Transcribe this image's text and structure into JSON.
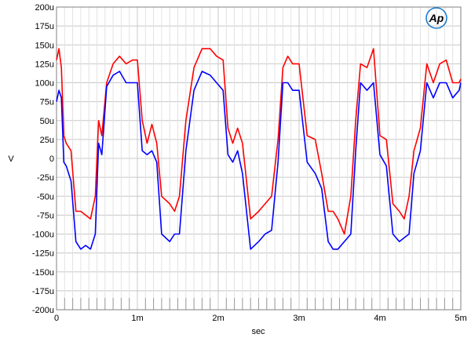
{
  "logo": {
    "text": "Ap",
    "color": "#1e7fd0"
  },
  "chart_data": {
    "type": "line",
    "title": "",
    "xlabel": "sec",
    "ylabel": "V",
    "xlim": [
      0,
      0.005
    ],
    "ylim": [
      -0.0002,
      0.0002
    ],
    "grid": true,
    "x_tick_labels": [
      "0",
      "1m",
      "2m",
      "3m",
      "4m",
      "5m"
    ],
    "x_tick_values": [
      0,
      0.001,
      0.002,
      0.003,
      0.004,
      0.005
    ],
    "y_tick_labels": [
      "200u",
      "175u",
      "150u",
      "125u",
      "100u",
      "75u",
      "50u",
      "25u",
      "0",
      "-25u",
      "-50u",
      "-75u",
      "-100u",
      "-125u",
      "-150u",
      "-175u",
      "-200u"
    ],
    "y_tick_values": [
      0.0002,
      0.000175,
      0.00015,
      0.000125,
      0.0001,
      7.5e-05,
      5e-05,
      2.5e-05,
      0,
      -2.5e-05,
      -5e-05,
      -7.5e-05,
      -0.0001,
      -0.000125,
      -0.00015,
      -0.000175,
      -0.0002
    ],
    "series": [
      {
        "color": "#ff0000",
        "x": [
          0,
          3e-05,
          6e-05,
          9e-05,
          0.00012,
          0.00018,
          0.00024,
          0.0003,
          0.00036,
          0.00042,
          0.00048,
          0.00052,
          0.00056,
          0.00062,
          0.0007,
          0.00078,
          0.00086,
          0.00094,
          0.001,
          0.00106,
          0.00112,
          0.00118,
          0.00124,
          0.0013,
          0.0014,
          0.00146,
          0.00152,
          0.0016,
          0.0017,
          0.0018,
          0.0019,
          0.00198,
          0.00206,
          0.00212,
          0.00218,
          0.00224,
          0.0023,
          0.0024,
          0.0025,
          0.00258,
          0.00266,
          0.00274,
          0.0028,
          0.00286,
          0.00292,
          0.003,
          0.0031,
          0.0032,
          0.00328,
          0.00336,
          0.00342,
          0.00348,
          0.00356,
          0.00364,
          0.0037,
          0.00376,
          0.00384,
          0.00392,
          0.004,
          0.00408,
          0.00416,
          0.00424,
          0.0043,
          0.00436,
          0.00442,
          0.0045,
          0.00458,
          0.00466,
          0.00474,
          0.00482,
          0.0049,
          0.00498,
          0.005
        ],
        "y": [
          0.00013,
          0.000145,
          0.00012,
          3e-05,
          2e-05,
          1e-05,
          -7e-05,
          -7e-05,
          -7.5e-05,
          -8e-05,
          -5e-05,
          5e-05,
          3e-05,
          0.0001,
          0.000125,
          0.000135,
          0.000125,
          0.00013,
          0.00013,
          5e-05,
          2e-05,
          4.5e-05,
          2e-05,
          -5e-05,
          -6e-05,
          -7e-05,
          -5e-05,
          5e-05,
          0.00012,
          0.000145,
          0.000145,
          0.000135,
          0.00013,
          4e-05,
          2e-05,
          4e-05,
          2e-05,
          -8e-05,
          -7e-05,
          -6e-05,
          -5e-05,
          2.5e-05,
          0.00012,
          0.000135,
          0.000125,
          0.000125,
          3e-05,
          2.5e-05,
          -2e-05,
          -7e-05,
          -7e-05,
          -8e-05,
          -0.0001,
          -5e-05,
          5e-05,
          0.000125,
          0.00012,
          0.000145,
          3e-05,
          2.5e-05,
          -6e-05,
          -7e-05,
          -8e-05,
          -5e-05,
          1e-05,
          4e-05,
          0.000125,
          0.0001,
          0.000125,
          0.00013,
          0.0001,
          0.0001,
          0.000105
        ]
      },
      {
        "color": "#0000ff",
        "x": [
          0,
          3e-05,
          6e-05,
          9e-05,
          0.00012,
          0.00018,
          0.00024,
          0.0003,
          0.00036,
          0.00042,
          0.00048,
          0.00052,
          0.00056,
          0.00062,
          0.0007,
          0.00078,
          0.00086,
          0.00094,
          0.001,
          0.00106,
          0.00112,
          0.00118,
          0.00124,
          0.0013,
          0.0014,
          0.00146,
          0.00152,
          0.0016,
          0.0017,
          0.0018,
          0.0019,
          0.00198,
          0.00206,
          0.00212,
          0.00218,
          0.00224,
          0.0023,
          0.0024,
          0.0025,
          0.00258,
          0.00266,
          0.00274,
          0.0028,
          0.00286,
          0.00292,
          0.003,
          0.0031,
          0.0032,
          0.00328,
          0.00336,
          0.00342,
          0.00348,
          0.00356,
          0.00364,
          0.0037,
          0.00376,
          0.00384,
          0.00392,
          0.004,
          0.00408,
          0.00416,
          0.00424,
          0.0043,
          0.00436,
          0.00442,
          0.0045,
          0.00458,
          0.00466,
          0.00474,
          0.00482,
          0.0049,
          0.00498,
          0.005
        ],
        "y": [
          7.5e-05,
          9e-05,
          8e-05,
          -5e-06,
          -1e-05,
          -3e-05,
          -0.00011,
          -0.00012,
          -0.000115,
          -0.00012,
          -0.0001,
          2e-05,
          5e-06,
          9.5e-05,
          0.00011,
          0.000115,
          0.0001,
          0.0001,
          0.0001,
          1e-05,
          5e-06,
          1e-05,
          -5e-06,
          -0.0001,
          -0.00011,
          -0.0001,
          -0.0001,
          1e-05,
          9e-05,
          0.000115,
          0.00011,
          0.0001,
          9e-05,
          5e-06,
          -5e-06,
          1e-05,
          -2e-05,
          -0.00012,
          -0.00011,
          -0.0001,
          -9.5e-05,
          -5e-06,
          0.0001,
          0.0001,
          9e-05,
          9e-05,
          -5e-06,
          -2e-05,
          -4e-05,
          -0.00011,
          -0.00012,
          -0.00012,
          -0.00011,
          -0.0001,
          1e-05,
          0.0001,
          9e-05,
          0.0001,
          5e-06,
          -1e-05,
          -0.0001,
          -0.00011,
          -0.000105,
          -0.0001,
          -2e-05,
          1e-05,
          0.0001,
          8e-05,
          0.0001,
          0.0001,
          8e-05,
          9e-05,
          0.0001
        ]
      }
    ]
  }
}
